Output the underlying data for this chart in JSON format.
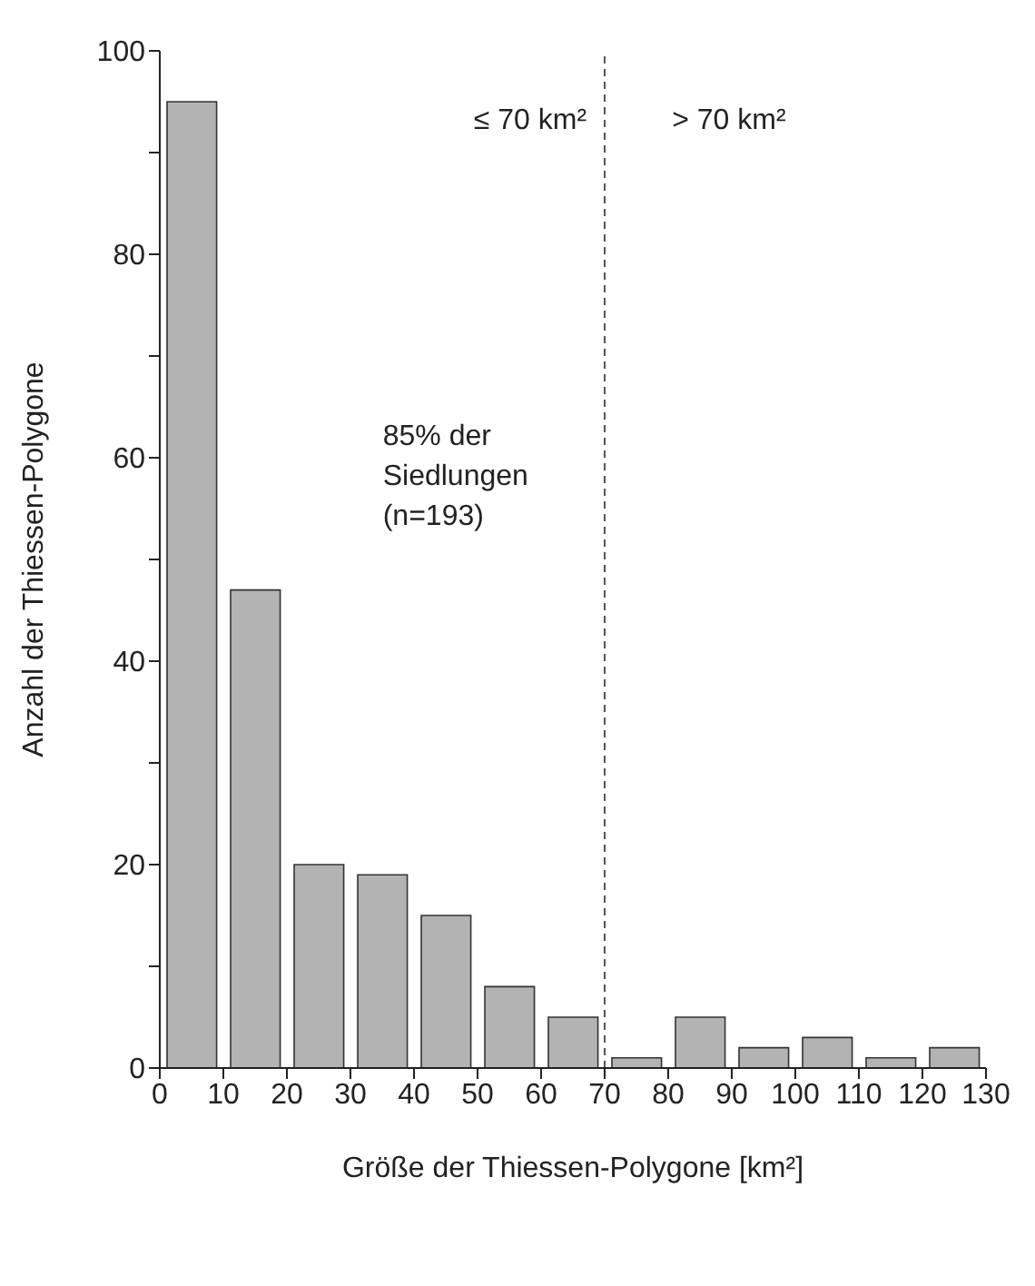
{
  "chart_data": {
    "type": "histogram",
    "xlabel": "Größe der Thiessen-Polygone [km²]",
    "ylabel": "Anzahl der Thiessen-Polygone",
    "bins": [
      0,
      10,
      20,
      30,
      40,
      50,
      60,
      70,
      80,
      90,
      100,
      110,
      120,
      130
    ],
    "values": [
      95,
      47,
      20,
      19,
      15,
      8,
      5,
      1,
      5,
      2,
      3,
      1,
      2
    ],
    "color": "#b3b3b3",
    "xlim": [
      0,
      130
    ],
    "xticks": [
      0,
      10,
      20,
      30,
      40,
      50,
      60,
      70,
      80,
      90,
      100,
      110,
      120,
      130
    ],
    "ylim": [
      0,
      100
    ],
    "yticks": [
      0,
      {
        "value": 10,
        "label": null
      },
      20,
      {
        "value": 30,
        "label": null
      },
      40,
      {
        "value": 50,
        "label": null
      },
      60,
      {
        "value": 70,
        "label": null
      },
      80,
      {
        "value": 90,
        "label": null
      },
      100
    ],
    "ref_lines": [
      {
        "axis": "x",
        "value": 70,
        "line_style": "dashed",
        "color": "#555555"
      }
    ],
    "annotations": [
      "≤ 70 km²",
      "> 70 km²",
      "85% der Siedlungen (n=193)"
    ]
  }
}
